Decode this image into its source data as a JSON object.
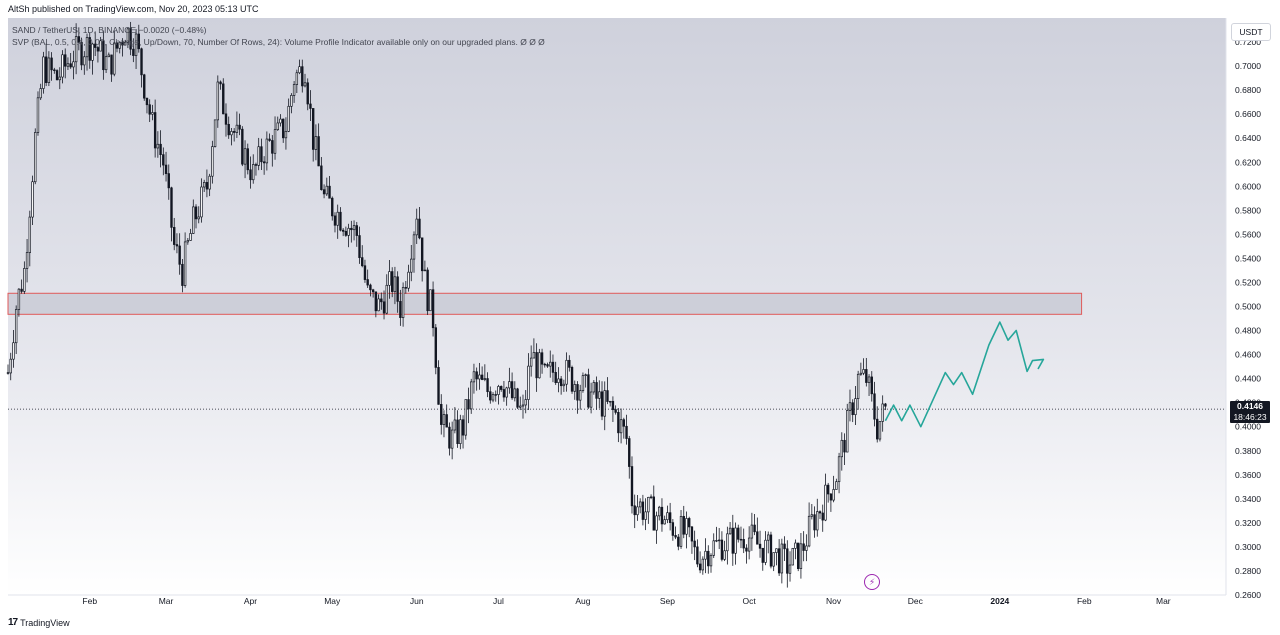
{
  "header": {
    "published": "AltSh published on TradingView.com, Nov 20, 2023 05:13 UTC"
  },
  "legend": {
    "line1": "SAND / TetherUS, 1D, BINANCE  −0.0020 (−0.48%)",
    "line2": "SVP (BAL, 0.5, 0.4, 0.07, Change, Up/Down, 70, Number Of Rows, 24): Volume Profile Indicator available only on our upgraded plans.  Ø  Ø  Ø"
  },
  "axis": {
    "currency": "USDT",
    "current_price": "0.4146",
    "countdown": "18:46:23"
  },
  "footer": {
    "brand_mark": "17",
    "brand_name": "TradingView"
  },
  "icons": {
    "lightning": "lightning-icon",
    "logo": "tradingview-logo-icon"
  },
  "colors": {
    "candle": "#131722",
    "zone_fill": "#c9cbd6",
    "zone_border": "#e05a5a",
    "projection": "#26a69a",
    "lightning": "#9c27b0"
  },
  "chart_data": {
    "type": "candlestick",
    "symbol": "SAND / TetherUS",
    "timeframe": "1D",
    "exchange": "BINANCE",
    "y_ticks": [
      "0.7200",
      "0.7000",
      "0.6800",
      "0.6600",
      "0.6400",
      "0.6200",
      "0.6000",
      "0.5800",
      "0.5600",
      "0.5400",
      "0.5200",
      "0.5000",
      "0.4800",
      "0.4600",
      "0.4400",
      "0.4200",
      "0.4000",
      "0.3800",
      "0.3600",
      "0.3400",
      "0.3200",
      "0.3000",
      "0.2800",
      "0.2600"
    ],
    "ylim": [
      0.26,
      0.74
    ],
    "x_ticks": [
      {
        "label": "Feb",
        "date": "2023-02-01"
      },
      {
        "label": "Mar",
        "date": "2023-03-01"
      },
      {
        "label": "Apr",
        "date": "2023-04-01"
      },
      {
        "label": "May",
        "date": "2023-05-01"
      },
      {
        "label": "Jun",
        "date": "2023-06-01"
      },
      {
        "label": "Jul",
        "date": "2023-07-01"
      },
      {
        "label": "Aug",
        "date": "2023-08-01"
      },
      {
        "label": "Sep",
        "date": "2023-09-01"
      },
      {
        "label": "Oct",
        "date": "2023-10-01"
      },
      {
        "label": "Nov",
        "date": "2023-11-01"
      },
      {
        "label": "Dec",
        "date": "2023-12-01"
      },
      {
        "label": "2024",
        "date": "2024-01-01"
      },
      {
        "label": "Feb",
        "date": "2024-02-01"
      },
      {
        "label": "Mar",
        "date": "2024-03-01"
      }
    ],
    "xlim": [
      "2023-01-02",
      "2024-03-24"
    ],
    "price_line": 0.4146,
    "zone": {
      "start": "2023-01-02",
      "end": "2024-01-31",
      "low": 0.4935,
      "high": 0.511
    },
    "anchors": [
      [
        "2023-01-02",
        0.445
      ],
      [
        "2023-01-05",
        0.5
      ],
      [
        "2023-01-08",
        0.53
      ],
      [
        "2023-01-12",
        0.64
      ],
      [
        "2023-01-15",
        0.7
      ],
      [
        "2023-01-20",
        0.69
      ],
      [
        "2023-01-26",
        0.71
      ],
      [
        "2023-02-02",
        0.72
      ],
      [
        "2023-02-08",
        0.7
      ],
      [
        "2023-02-14",
        0.73
      ],
      [
        "2023-02-18",
        0.72
      ],
      [
        "2023-02-24",
        0.65
      ],
      [
        "2023-02-28",
        0.62
      ],
      [
        "2023-03-04",
        0.55
      ],
      [
        "2023-03-07",
        0.53
      ],
      [
        "2023-03-11",
        0.57
      ],
      [
        "2023-03-16",
        0.6
      ],
      [
        "2023-03-20",
        0.68
      ],
      [
        "2023-03-25",
        0.65
      ],
      [
        "2023-03-29",
        0.63
      ],
      [
        "2023-04-02",
        0.61
      ],
      [
        "2023-04-06",
        0.63
      ],
      [
        "2023-04-10",
        0.64
      ],
      [
        "2023-04-14",
        0.65
      ],
      [
        "2023-04-17",
        0.69
      ],
      [
        "2023-04-21",
        0.7
      ],
      [
        "2023-04-24",
        0.64
      ],
      [
        "2023-04-28",
        0.59
      ],
      [
        "2023-05-02",
        0.58
      ],
      [
        "2023-05-06",
        0.57
      ],
      [
        "2023-05-10",
        0.56
      ],
      [
        "2023-05-14",
        0.51
      ],
      [
        "2023-05-18",
        0.5
      ],
      [
        "2023-05-23",
        0.52
      ],
      [
        "2023-05-26",
        0.5
      ],
      [
        "2023-05-29",
        0.54
      ],
      [
        "2023-06-01",
        0.58
      ],
      [
        "2023-06-04",
        0.52
      ],
      [
        "2023-06-07",
        0.49
      ],
      [
        "2023-06-10",
        0.4
      ],
      [
        "2023-06-14",
        0.39
      ],
      [
        "2023-06-18",
        0.4
      ],
      [
        "2023-06-22",
        0.44
      ],
      [
        "2023-06-27",
        0.43
      ],
      [
        "2023-07-02",
        0.44
      ],
      [
        "2023-07-07",
        0.42
      ],
      [
        "2023-07-10",
        0.41
      ],
      [
        "2023-07-13",
        0.46
      ],
      [
        "2023-07-18",
        0.44
      ],
      [
        "2023-07-23",
        0.45
      ],
      [
        "2023-07-28",
        0.44
      ],
      [
        "2023-08-02",
        0.43
      ],
      [
        "2023-08-08",
        0.42
      ],
      [
        "2023-08-13",
        0.41
      ],
      [
        "2023-08-17",
        0.39
      ],
      [
        "2023-08-19",
        0.34
      ],
      [
        "2023-08-24",
        0.33
      ],
      [
        "2023-08-30",
        0.325
      ],
      [
        "2023-09-04",
        0.315
      ],
      [
        "2023-09-08",
        0.31
      ],
      [
        "2023-09-12",
        0.29
      ],
      [
        "2023-09-17",
        0.3
      ],
      [
        "2023-09-24",
        0.305
      ],
      [
        "2023-09-30",
        0.31
      ],
      [
        "2023-10-05",
        0.3
      ],
      [
        "2023-10-10",
        0.295
      ],
      [
        "2023-10-15",
        0.285
      ],
      [
        "2023-10-20",
        0.295
      ],
      [
        "2023-10-24",
        0.32
      ],
      [
        "2023-10-29",
        0.34
      ],
      [
        "2023-11-02",
        0.36
      ],
      [
        "2023-11-06",
        0.4
      ],
      [
        "2023-11-10",
        0.44
      ],
      [
        "2023-11-13",
        0.44
      ],
      [
        "2023-11-17",
        0.4
      ],
      [
        "2023-11-20",
        0.4146
      ]
    ],
    "projection": [
      [
        "2023-11-20",
        0.405
      ],
      [
        "2023-11-23",
        0.418
      ],
      [
        "2023-11-26",
        0.405
      ],
      [
        "2023-11-29",
        0.418
      ],
      [
        "2023-12-03",
        0.4
      ],
      [
        "2023-12-12",
        0.445
      ],
      [
        "2023-12-15",
        0.435
      ],
      [
        "2023-12-18",
        0.445
      ],
      [
        "2023-12-22",
        0.427
      ],
      [
        "2023-12-28",
        0.468
      ],
      [
        "2024-01-01",
        0.487
      ],
      [
        "2024-01-04",
        0.472
      ],
      [
        "2024-01-07",
        0.48
      ],
      [
        "2024-01-11",
        0.446
      ],
      [
        "2024-01-13",
        0.455
      ],
      [
        "2024-01-17",
        0.456
      ],
      [
        "2024-01-15",
        0.448
      ]
    ]
  }
}
